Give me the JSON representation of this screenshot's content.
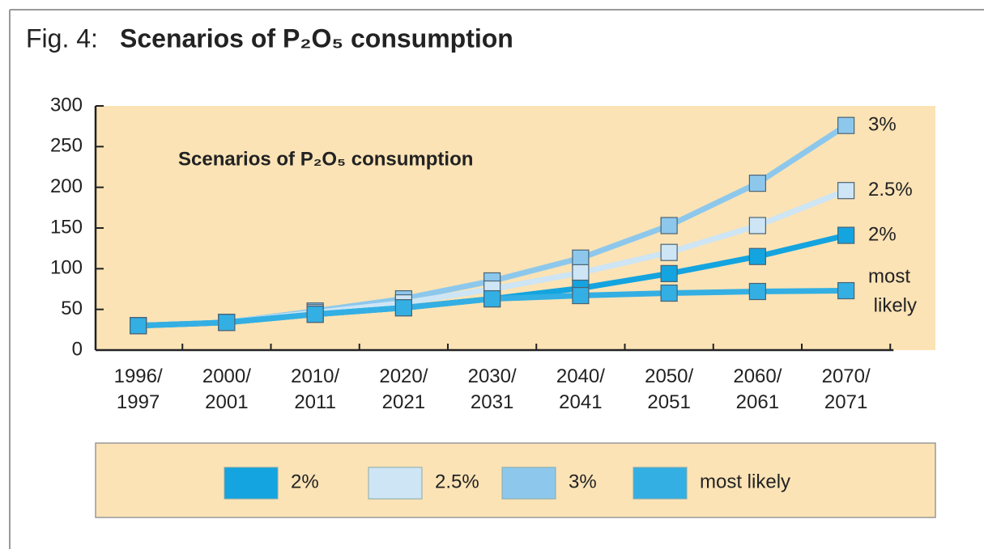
{
  "chart_data": {
    "type": "line",
    "title_prefix": "Fig. 4:",
    "title": "Scenarios of P₂O₅ consumption",
    "subtitle": "Scenarios of P₂O₅ consumption",
    "categories": [
      "1996/1997",
      "2000/2001",
      "2010/2011",
      "2020/2021",
      "2030/2031",
      "2040/2041",
      "2050/2051",
      "2060/2061",
      "2070/2071"
    ],
    "series": [
      {
        "name": "2%",
        "color": "#14a4df",
        "values": [
          30,
          34,
          44,
          52,
          63,
          76,
          94,
          115,
          141
        ]
      },
      {
        "name": "2.5%",
        "color": "#cde5f4",
        "values": [
          30,
          34,
          46,
          58,
          75,
          95,
          120,
          153,
          196
        ]
      },
      {
        "name": "3%",
        "color": "#8dc8ec",
        "values": [
          30,
          34,
          48,
          63,
          85,
          113,
          153,
          205,
          276
        ]
      },
      {
        "name": "most likely",
        "color": "#33afe3",
        "values": [
          30,
          34,
          44,
          52,
          63,
          67,
          70,
          72,
          73
        ]
      }
    ],
    "ylim": [
      0,
      300
    ],
    "yticks": [
      0,
      50,
      100,
      150,
      200,
      250,
      300
    ],
    "grid": false
  }
}
